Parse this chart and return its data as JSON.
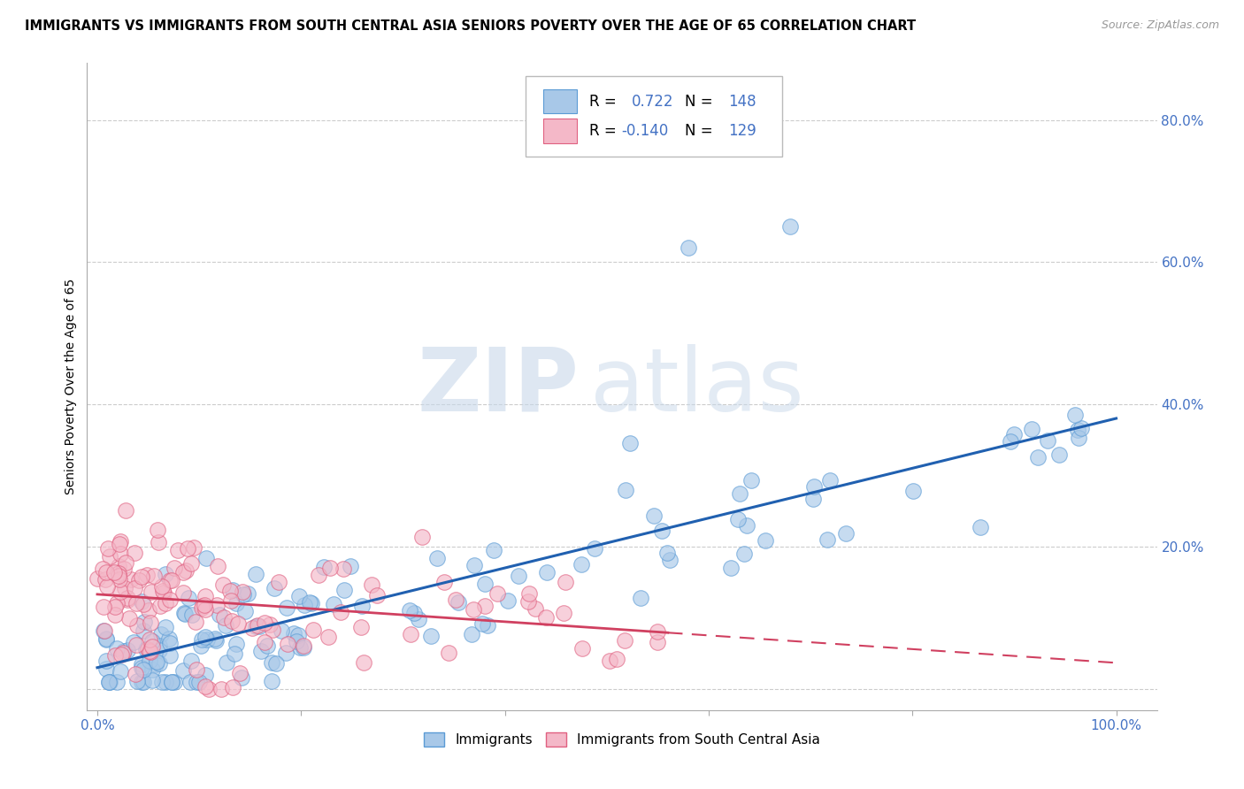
{
  "title": "IMMIGRANTS VS IMMIGRANTS FROM SOUTH CENTRAL ASIA SENIORS POVERTY OVER THE AGE OF 65 CORRELATION CHART",
  "source": "Source: ZipAtlas.com",
  "ylabel": "Seniors Poverty Over the Age of 65",
  "blue_R": 0.722,
  "blue_N": 148,
  "pink_R": -0.14,
  "pink_N": 129,
  "blue_color": "#a8c8e8",
  "blue_edge": "#5b9bd5",
  "pink_color": "#f4b8c8",
  "pink_edge": "#e06080",
  "blue_line_color": "#2060b0",
  "pink_line_color": "#d04060",
  "watermark_zip": "ZIP",
  "watermark_atlas": "atlas",
  "title_fontsize": 10.5,
  "tick_color": "#4472c4",
  "tick_fontsize": 11
}
